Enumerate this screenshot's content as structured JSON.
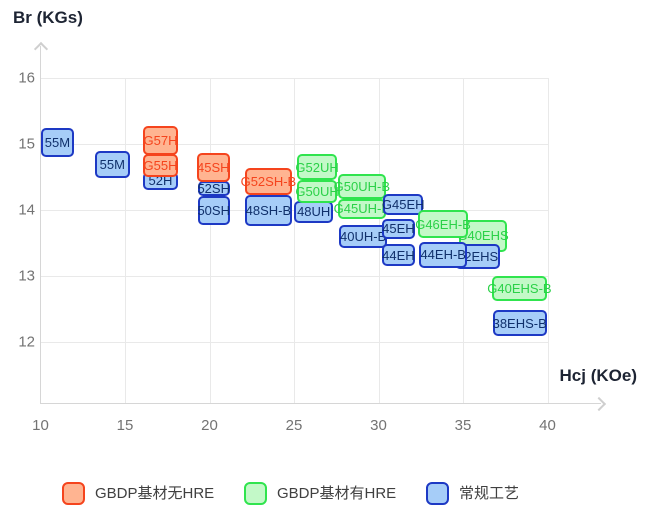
{
  "chart": {
    "y_axis_title": "Br (KGs)",
    "x_axis_title": "Hcj (KOe)"
  },
  "legend": [
    {
      "id": "gbdp-no-hre",
      "label": "GBDP基材无HRE",
      "fill": "#FFB491",
      "border": "#F5441D"
    },
    {
      "id": "gbdp-hre",
      "label": "GBDP基材有HRE",
      "fill": "#C3F9C8",
      "border": "#30E44E"
    },
    {
      "id": "conventional",
      "label": "常规工艺",
      "fill": "#A6CDF8",
      "border": "#1D39C4"
    }
  ],
  "chart_data": {
    "type": "scatter",
    "subtype": "labeled-range-boxes",
    "title": "",
    "xlabel": "Hcj (KOe)",
    "ylabel": "Br (KGs)",
    "xlim": [
      10,
      43.2
    ],
    "ylim": [
      11.1,
      16.5
    ],
    "x_ticks": [
      10,
      15,
      20,
      25,
      30,
      35,
      40
    ],
    "y_ticks": [
      16,
      15,
      14,
      13,
      12
    ],
    "grid": true,
    "legend_position": "bottom",
    "series_styles": {
      "GBDP基材无HRE": {
        "fill": "#FFB491",
        "border": "#F5441D",
        "text": "#F5441D"
      },
      "GBDP基材有HRE": {
        "fill": "#C3F9C8",
        "border": "#30E44E",
        "text": "#2BD148"
      },
      "常规工艺": {
        "fill": "#A6CDF8",
        "border": "#1D39C4",
        "text": "#10306B"
      }
    },
    "points": [
      {
        "label": "55M",
        "series": "常规工艺",
        "hcj": [
          10.0,
          12.0
        ],
        "br": [
          14.8,
          15.25
        ]
      },
      {
        "label": "55M",
        "series": "常规工艺",
        "hcj": [
          13.2,
          15.3
        ],
        "br": [
          14.48,
          14.9
        ]
      },
      {
        "label": "52H",
        "series": "常规工艺",
        "hcj": [
          16.05,
          18.15
        ],
        "br": [
          14.3,
          14.58
        ]
      },
      {
        "label": "G57H",
        "series": "GBDP基材无HRE",
        "hcj": [
          16.05,
          18.15
        ],
        "br": [
          14.83,
          15.27
        ]
      },
      {
        "label": "G55H",
        "series": "GBDP基材无HRE",
        "hcj": [
          16.05,
          18.15
        ],
        "br": [
          14.5,
          14.85
        ]
      },
      {
        "label": "52SH",
        "series": "常规工艺",
        "hcj": [
          19.3,
          21.2
        ],
        "br": [
          14.21,
          14.44
        ]
      },
      {
        "label": "50SH",
        "series": "常规工艺",
        "hcj": [
          19.3,
          21.2
        ],
        "br": [
          13.77,
          14.21
        ]
      },
      {
        "label": "45SH",
        "series": "GBDP基材无HRE",
        "hcj": [
          19.25,
          21.2
        ],
        "br": [
          14.43,
          14.86
        ]
      },
      {
        "label": "48SH-B",
        "series": "常规工艺",
        "hcj": [
          22.1,
          24.87
        ],
        "br": [
          13.75,
          14.23
        ]
      },
      {
        "label": "G52SH-B",
        "series": "GBDP基材无HRE",
        "hcj": [
          22.1,
          24.87
        ],
        "br": [
          14.23,
          14.63
        ]
      },
      {
        "label": "48UH",
        "series": "常规工艺",
        "hcj": [
          25.0,
          27.33
        ],
        "br": [
          13.81,
          14.14
        ]
      },
      {
        "label": "G52UH",
        "series": "GBDP基材有HRE",
        "hcj": [
          25.2,
          27.53
        ],
        "br": [
          14.45,
          14.85
        ]
      },
      {
        "label": "G50UH",
        "series": "GBDP基材有HRE",
        "hcj": [
          25.2,
          27.53
        ],
        "br": [
          14.1,
          14.45
        ]
      },
      {
        "label": "40UH-B",
        "series": "常规工艺",
        "hcj": [
          27.68,
          30.5
        ],
        "br": [
          13.43,
          13.78
        ]
      },
      {
        "label": "G50UH-B",
        "series": "GBDP基材有HRE",
        "hcj": [
          27.6,
          30.43
        ],
        "br": [
          14.17,
          14.54
        ]
      },
      {
        "label": "G45UH-B",
        "series": "GBDP基材有HRE",
        "hcj": [
          27.6,
          30.43
        ],
        "br": [
          13.87,
          14.17
        ]
      },
      {
        "label": "G45EH",
        "series": "常规工艺",
        "hcj": [
          30.28,
          32.65
        ],
        "br": [
          13.92,
          14.25
        ]
      },
      {
        "label": "45EH",
        "series": "常规工艺",
        "hcj": [
          30.2,
          32.16
        ],
        "br": [
          13.56,
          13.87
        ]
      },
      {
        "label": "44EH",
        "series": "常规工艺",
        "hcj": [
          30.2,
          32.16
        ],
        "br": [
          13.15,
          13.48
        ]
      },
      {
        "label": "G40EHS",
        "series": "GBDP基材有HRE",
        "hcj": [
          34.77,
          37.6
        ],
        "br": [
          13.37,
          13.85
        ]
      },
      {
        "label": "42EHS",
        "series": "常规工艺",
        "hcj": [
          34.53,
          37.2
        ],
        "br": [
          13.11,
          13.48
        ]
      },
      {
        "label": "G46EH-B",
        "series": "GBDP基材有HRE",
        "hcj": [
          32.34,
          35.3
        ],
        "br": [
          13.57,
          14.0
        ]
      },
      {
        "label": "44EH-B",
        "series": "常规工艺",
        "hcj": [
          32.42,
          35.24
        ],
        "br": [
          13.12,
          13.52
        ]
      },
      {
        "label": "G40EHS-B",
        "series": "GBDP基材有HRE",
        "hcj": [
          36.73,
          39.95
        ],
        "br": [
          12.62,
          13.0
        ]
      },
      {
        "label": "38EHS-B",
        "series": "常规工艺",
        "hcj": [
          36.76,
          39.95
        ],
        "br": [
          12.09,
          12.48
        ]
      }
    ]
  }
}
